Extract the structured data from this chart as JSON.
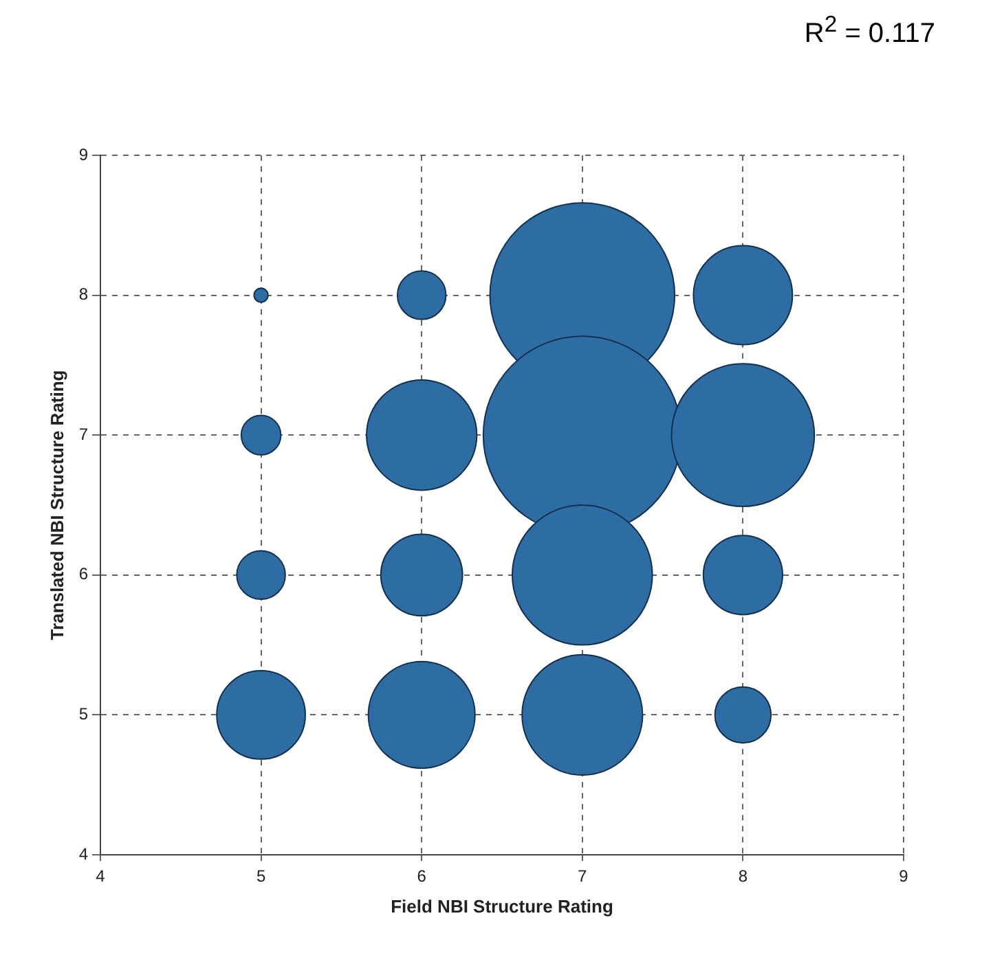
{
  "chart_data": {
    "type": "bubble",
    "xlabel": "Field NBI Structure Rating",
    "ylabel": "Translated NBI Structure Rating",
    "annotations": [
      "R$^{2}$ = 0.117"
    ],
    "x": [
      5,
      6,
      7,
      8,
      5,
      6,
      7,
      8,
      5,
      6,
      7,
      8,
      5,
      6,
      7,
      8
    ],
    "series": [
      {
        "color": "#2e6da4",
        "values": [
          8,
          8,
          8,
          8,
          7,
          7,
          7,
          7,
          6,
          6,
          6,
          6,
          5,
          5,
          5,
          5
        ],
        "sizes": [
          0.005,
          0.06,
          0.87,
          0.25,
          0.04,
          0.31,
          1,
          0.52,
          0.06,
          0.17,
          0.5,
          0.16,
          0.2,
          0.29,
          0.37,
          0.08
        ]
      }
    ],
    "xlim": [
      4,
      9
    ],
    "xticks": [
      4,
      5,
      6,
      7,
      8,
      9
    ],
    "ylim": [
      4,
      9
    ],
    "yticks": [
      4,
      5,
      6,
      7,
      8,
      9
    ],
    "grid": true,
    "legend": false
  }
}
